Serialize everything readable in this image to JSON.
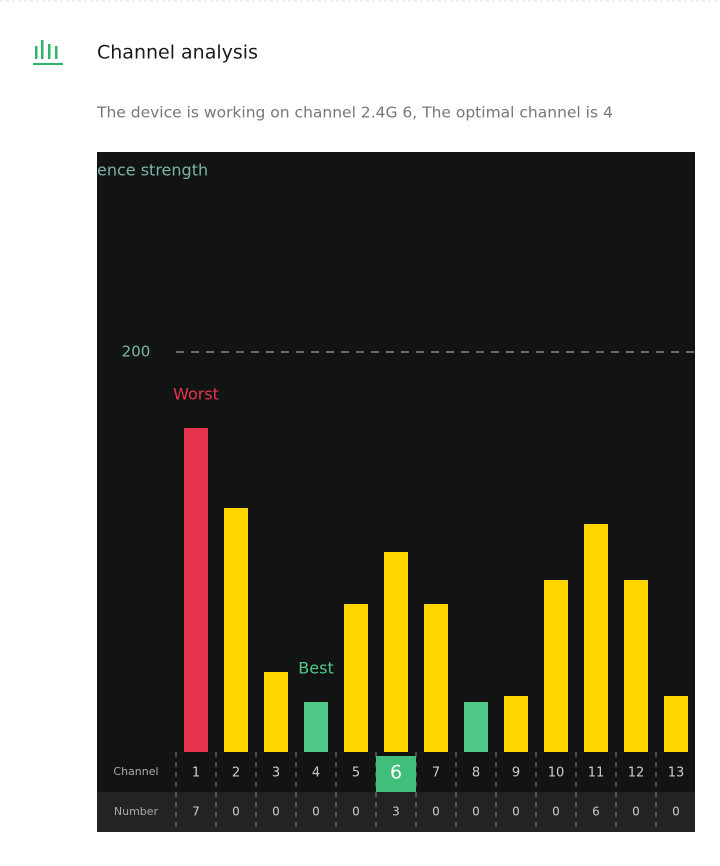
{
  "header": {
    "title": "Channel analysis",
    "subtitle": "The device is working on channel 2.4G 6, The optimal channel is 4"
  },
  "chart_data": {
    "type": "bar",
    "ylabel": "ence strength",
    "categories": [
      "1",
      "2",
      "3",
      "4",
      "5",
      "6",
      "7",
      "8",
      "9",
      "10",
      "11",
      "12",
      "13"
    ],
    "values": [
      162,
      122,
      40,
      25,
      74,
      100,
      74,
      25,
      28,
      86,
      114,
      86,
      28
    ],
    "colors": [
      "#e8334f",
      "#ffd600",
      "#ffd600",
      "#52c78a",
      "#ffd600",
      "#ffd600",
      "#ffd600",
      "#52c78a",
      "#ffd600",
      "#ffd600",
      "#ffd600",
      "#ffd600",
      "#ffd600"
    ],
    "ylim": [
      0,
      300
    ],
    "yticks": [
      200
    ],
    "grid": true,
    "annotations": [
      {
        "text": "Worst",
        "channel": "1"
      },
      {
        "text": "Best",
        "channel": "4"
      }
    ],
    "selected_channel": "6",
    "row_labels": [
      "Channel",
      "Number"
    ],
    "numbers": [
      7,
      0,
      0,
      0,
      0,
      3,
      0,
      0,
      0,
      0,
      6,
      0,
      0
    ]
  }
}
